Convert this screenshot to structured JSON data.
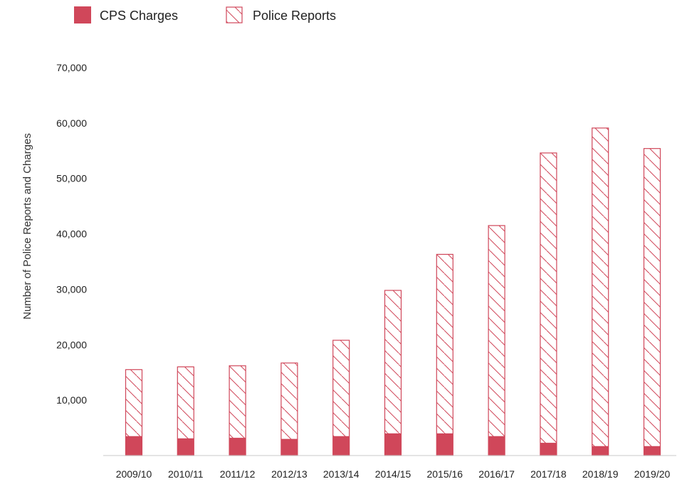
{
  "colors": {
    "accent": "#d0475a",
    "axis": "#c8c8c8",
    "background": "#ffffff"
  },
  "chart_data": {
    "type": "bar",
    "title": "",
    "xlabel": "",
    "ylabel": "Number of Police Reports and Charges",
    "ylim": [
      0,
      70000
    ],
    "yticks": [
      10000,
      20000,
      30000,
      40000,
      50000,
      60000,
      70000
    ],
    "ytick_labels": [
      "10,000",
      "20,000",
      "30,000",
      "40,000",
      "50,000",
      "60,000",
      "70,000"
    ],
    "grid": false,
    "legend_position": "top-left",
    "categories": [
      "2009/10",
      "2010/11",
      "2011/12",
      "2012/13",
      "2013/14",
      "2014/15",
      "2015/16",
      "2016/17",
      "2017/18",
      "2018/19",
      "2019/20"
    ],
    "series": [
      {
        "name": "CPS Charges",
        "style": "solid",
        "values": [
          3500,
          3100,
          3200,
          3000,
          3500,
          4000,
          4000,
          3500,
          2300,
          1700,
          1700
        ]
      },
      {
        "name": "Police Reports",
        "style": "hatched",
        "values": [
          15500,
          16000,
          16200,
          16700,
          20800,
          29800,
          36300,
          41500,
          54600,
          59100,
          55400
        ]
      }
    ]
  }
}
